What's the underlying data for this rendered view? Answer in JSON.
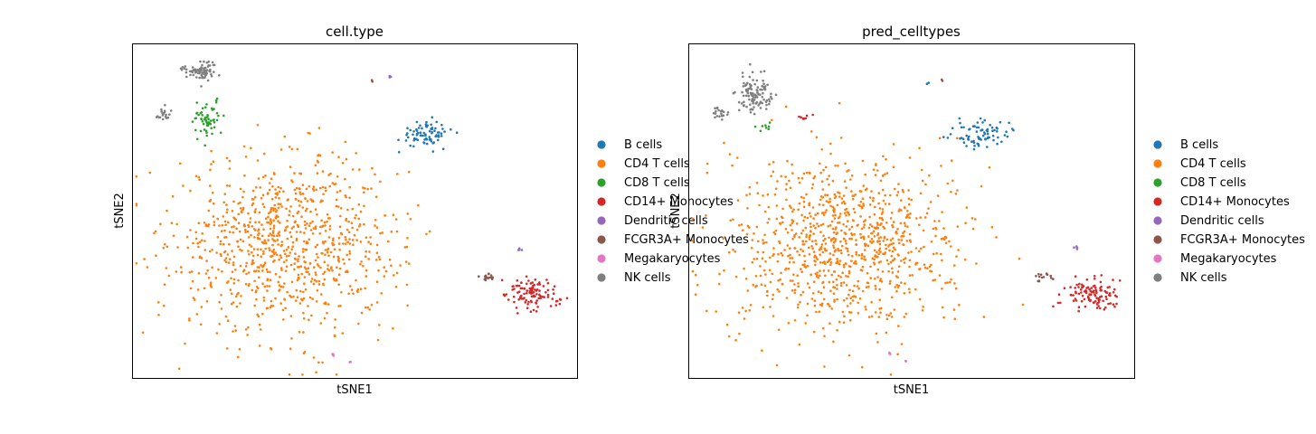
{
  "categories": [
    {
      "name": "B cells",
      "color": "#1f77b4"
    },
    {
      "name": "CD4 T cells",
      "color": "#ff7f0e"
    },
    {
      "name": "CD8 T cells",
      "color": "#2ca02c"
    },
    {
      "name": "CD14+ Monocytes",
      "color": "#d62728"
    },
    {
      "name": "Dendritic cells",
      "color": "#9467bd"
    },
    {
      "name": "FCGR3A+ Monocytes",
      "color": "#8c564b"
    },
    {
      "name": "Megakaryocytes",
      "color": "#e377c2"
    },
    {
      "name": "NK cells",
      "color": "#7f7f7f"
    }
  ],
  "chart_data": [
    {
      "type": "scatter",
      "title": "cell.type",
      "xlabel": "tSNE1",
      "ylabel": "tSNE2",
      "xticks": [],
      "yticks": [],
      "grid": false,
      "legend": "right",
      "legend_labels": [
        "B cells",
        "CD4 T cells",
        "CD8 T cells",
        "CD14+ Monocytes",
        "Dendritic cells",
        "FCGR3A+ Monocytes",
        "Megakaryocytes",
        "NK cells"
      ],
      "series": [
        {
          "name": "B cells",
          "clusters": [
            {
              "center": [
                0.66,
                0.73
              ],
              "spread": [
                0.06,
                0.04
              ],
              "count": 80
            }
          ]
        },
        {
          "name": "CD4 T cells",
          "clusters": [
            {
              "center": [
                0.35,
                0.4
              ],
              "spread": [
                0.25,
                0.26
              ],
              "count": 900
            }
          ]
        },
        {
          "name": "CD8 T cells",
          "clusters": [
            {
              "center": [
                0.17,
                0.77
              ],
              "spread": [
                0.04,
                0.05
              ],
              "count": 60
            }
          ]
        },
        {
          "name": "CD14+ Monocytes",
          "clusters": [
            {
              "center": [
                0.9,
                0.25
              ],
              "spread": [
                0.06,
                0.05
              ],
              "count": 110
            }
          ]
        },
        {
          "name": "Dendritic cells",
          "clusters": [
            {
              "center": [
                0.87,
                0.39
              ],
              "spread": [
                0.005,
                0.01
              ],
              "count": 4
            },
            {
              "center": [
                0.58,
                0.9
              ],
              "spread": [
                0.004,
                0.004
              ],
              "count": 3
            }
          ]
        },
        {
          "name": "FCGR3A+ Monocytes",
          "clusters": [
            {
              "center": [
                0.8,
                0.3
              ],
              "spread": [
                0.02,
                0.015
              ],
              "count": 15
            },
            {
              "center": [
                0.54,
                0.89
              ],
              "spread": [
                0.004,
                0.004
              ],
              "count": 2
            }
          ]
        },
        {
          "name": "Megakaryocytes",
          "clusters": [
            {
              "center": [
                0.45,
                0.07
              ],
              "spread": [
                0.005,
                0.008
              ],
              "count": 3
            },
            {
              "center": [
                0.49,
                0.05
              ],
              "spread": [
                0.003,
                0.003
              ],
              "count": 2
            }
          ]
        },
        {
          "name": "NK cells",
          "clusters": [
            {
              "center": [
                0.15,
                0.92
              ],
              "spread": [
                0.04,
                0.03
              ],
              "count": 80
            },
            {
              "center": [
                0.07,
                0.79
              ],
              "spread": [
                0.02,
                0.02
              ],
              "count": 20
            }
          ]
        }
      ]
    },
    {
      "type": "scatter",
      "title": "pred_celltypes",
      "xlabel": "tSNE1",
      "ylabel": "tSNE2",
      "xticks": [],
      "yticks": [],
      "grid": false,
      "legend": "right",
      "legend_labels": [
        "B cells",
        "CD4 T cells",
        "CD8 T cells",
        "CD14+ Monocytes",
        "Dendritic cells",
        "FCGR3A+ Monocytes",
        "Megakaryocytes",
        "NK cells"
      ],
      "series": [
        {
          "name": "B cells",
          "clusters": [
            {
              "center": [
                0.66,
                0.73
              ],
              "spread": [
                0.06,
                0.04
              ],
              "count": 80
            },
            {
              "center": [
                0.54,
                0.88
              ],
              "spread": [
                0.004,
                0.004
              ],
              "count": 2
            }
          ]
        },
        {
          "name": "CD4 T cells",
          "clusters": [
            {
              "center": [
                0.35,
                0.4
              ],
              "spread": [
                0.25,
                0.26
              ],
              "count": 950
            }
          ]
        },
        {
          "name": "CD8 T cells",
          "clusters": [
            {
              "center": [
                0.17,
                0.75
              ],
              "spread": [
                0.02,
                0.02
              ],
              "count": 8
            }
          ]
        },
        {
          "name": "CD14+ Monocytes",
          "clusters": [
            {
              "center": [
                0.9,
                0.25
              ],
              "spread": [
                0.06,
                0.05
              ],
              "count": 110
            },
            {
              "center": [
                0.26,
                0.78
              ],
              "spread": [
                0.02,
                0.01
              ],
              "count": 8
            }
          ]
        },
        {
          "name": "Dendritic cells",
          "clusters": [
            {
              "center": [
                0.87,
                0.39
              ],
              "spread": [
                0.005,
                0.01
              ],
              "count": 4
            }
          ]
        },
        {
          "name": "FCGR3A+ Monocytes",
          "clusters": [
            {
              "center": [
                0.8,
                0.3
              ],
              "spread": [
                0.02,
                0.015
              ],
              "count": 15
            },
            {
              "center": [
                0.57,
                0.89
              ],
              "spread": [
                0.004,
                0.004
              ],
              "count": 2
            }
          ]
        },
        {
          "name": "Megakaryocytes",
          "clusters": [
            {
              "center": [
                0.45,
                0.07
              ],
              "spread": [
                0.005,
                0.008
              ],
              "count": 3
            },
            {
              "center": [
                0.49,
                0.05
              ],
              "spread": [
                0.003,
                0.003
              ],
              "count": 2
            }
          ]
        },
        {
          "name": "NK cells",
          "clusters": [
            {
              "center": [
                0.15,
                0.85
              ],
              "spread": [
                0.04,
                0.06
              ],
              "count": 110
            },
            {
              "center": [
                0.07,
                0.79
              ],
              "spread": [
                0.02,
                0.02
              ],
              "count": 20
            }
          ]
        }
      ]
    }
  ]
}
